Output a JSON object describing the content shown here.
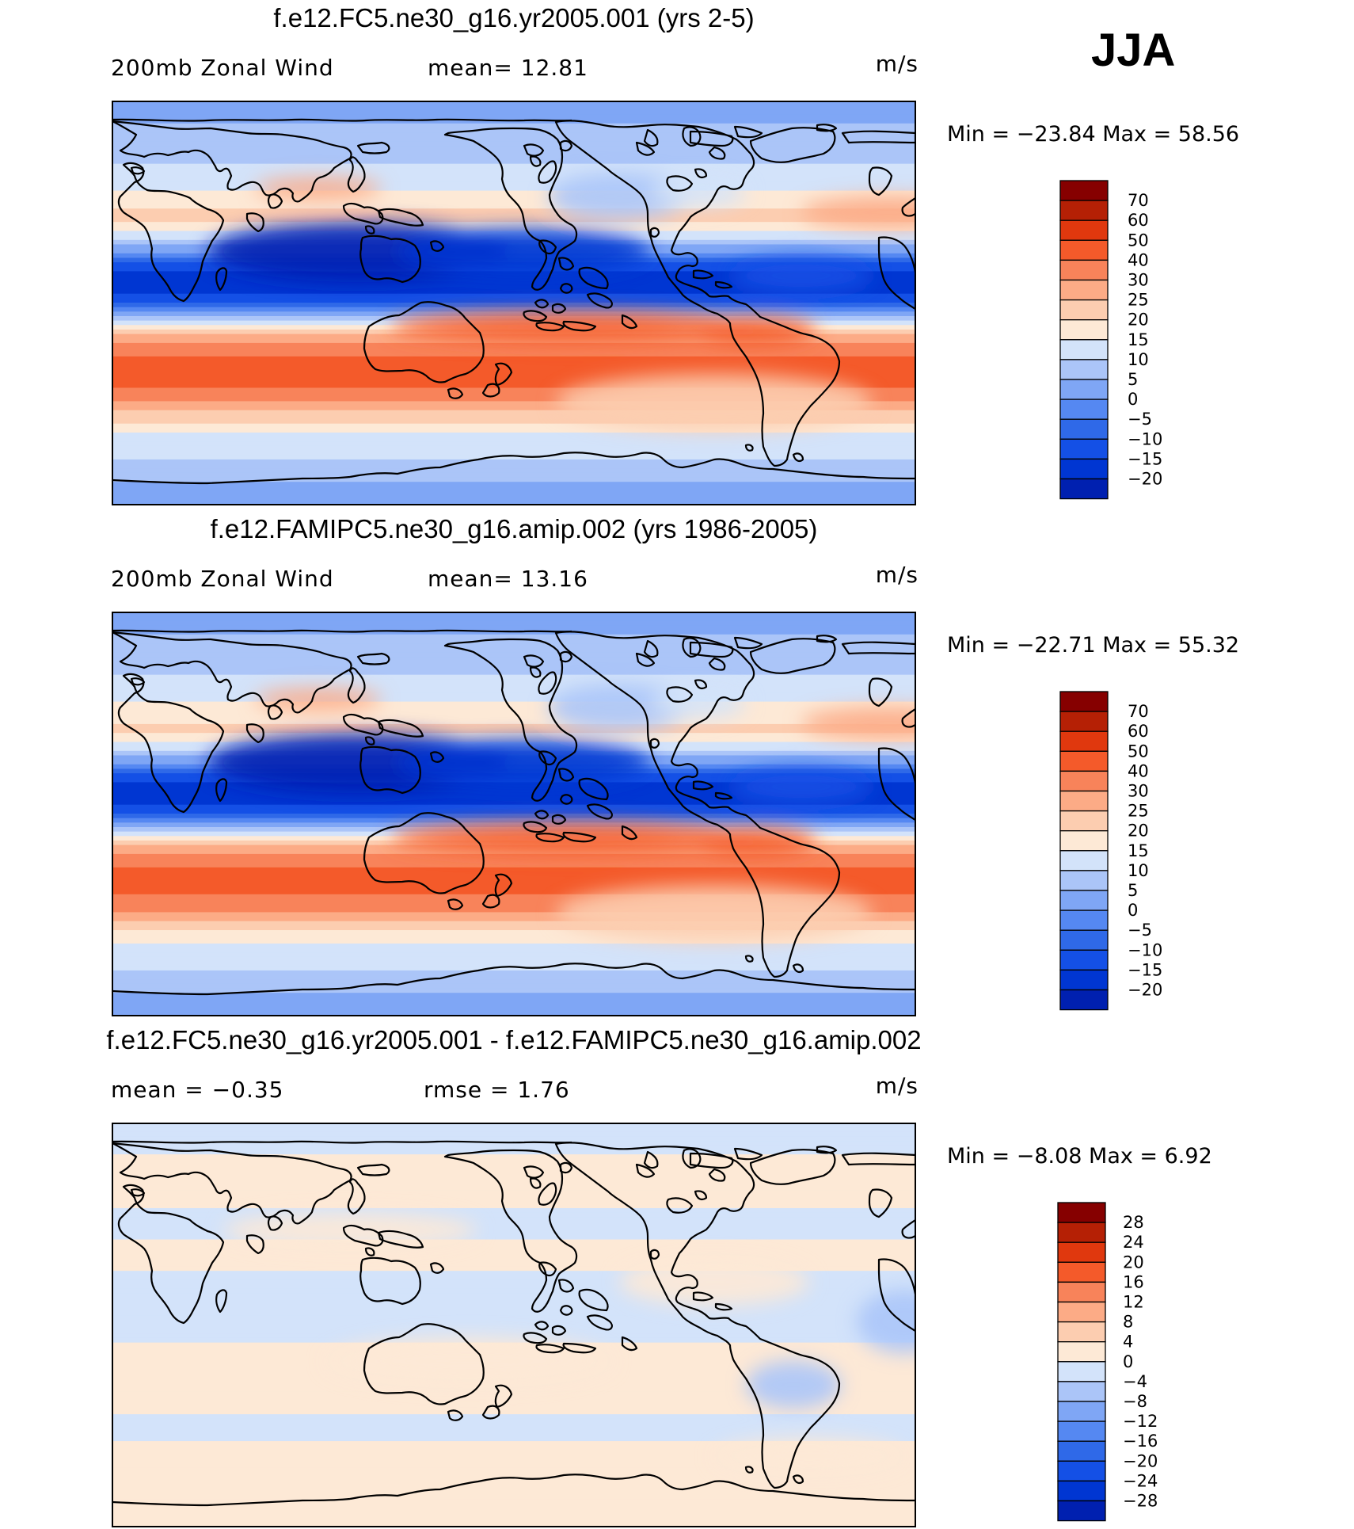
{
  "season": "JJA",
  "palette": {
    "main": [
      "#000E80",
      "#0020B0",
      "#0036D2",
      "#1450E6",
      "#2F69E8",
      "#5588F2",
      "#7FA6F5",
      "#ABC5F8",
      "#D3E3FA",
      "#FDE9D6",
      "#FCCDB0",
      "#FCAB86",
      "#F8835A",
      "#F45A2A",
      "#E0380E",
      "#B52005",
      "#860000"
    ],
    "diff": [
      "#000E80",
      "#0020B0",
      "#0036D2",
      "#1450E6",
      "#2F69E8",
      "#5588F2",
      "#7FA6F5",
      "#ABC5F8",
      "#D3E3FA",
      "#FDE9D6",
      "#FCCDB0",
      "#FCAB86",
      "#F8835A",
      "#F45A2A",
      "#E0380E",
      "#B52005",
      "#860000"
    ]
  },
  "panels": [
    {
      "title": "f.e12.FC5.ne30_g16.yr2005.001 (yrs 2-5)",
      "left_label": "200mb  Zonal  Wind",
      "mid_label": "mean=   12.81",
      "units": "m/s",
      "minmax": "Min  =  −23.84  Max  =    58.56"
    },
    {
      "title": "f.e12.FAMIPC5.ne30_g16.amip.002 (yrs 1986-2005)",
      "left_label": "200mb  Zonal  Wind",
      "mid_label": "mean=   13.16",
      "units": "m/s",
      "minmax": "Min  =  −22.71  Max  =    55.32"
    },
    {
      "title": "f.e12.FC5.ne30_g16.yr2005.001 - f.e12.FAMIPC5.ne30_g16.amip.002",
      "left_label": "mean  =    −0.35",
      "mid_label": "rmse  =     1.76",
      "units": "m/s",
      "minmax": "Min  =    −8.08  Max  =     6.92"
    }
  ],
  "chart_data": [
    {
      "type": "heatmap",
      "title": "f.e12.FC5.ne30_g16.yr2005.001 (yrs 2-5)",
      "variable": "200mb Zonal Wind",
      "units": "m/s",
      "mean": 12.81,
      "min": -23.84,
      "max": 58.56,
      "colorbar_levels": [
        "70",
        "60",
        "50",
        "40",
        "30",
        "25",
        "20",
        "15",
        "10",
        "5",
        "0",
        "−5",
        "−10",
        "−15",
        "−20"
      ],
      "zonal_profile": {
        "lat": [
          90,
          80,
          70,
          62,
          55,
          45,
          38,
          30,
          22,
          15,
          8,
          0,
          -8,
          -15,
          -22,
          -30,
          -38,
          -45,
          -55,
          -62,
          -70,
          -80,
          -90
        ],
        "u": [
          4,
          5,
          7,
          10,
          12,
          18,
          22,
          12,
          0,
          -15,
          -20,
          -10,
          12,
          26,
          38,
          46,
          40,
          28,
          18,
          12,
          10,
          5,
          2
        ]
      }
    },
    {
      "type": "heatmap",
      "title": "f.e12.FAMIPC5.ne30_g16.amip.002 (yrs 1986-2005)",
      "variable": "200mb Zonal Wind",
      "units": "m/s",
      "mean": 13.16,
      "min": -22.71,
      "max": 55.32,
      "colorbar_levels": [
        "70",
        "60",
        "50",
        "40",
        "30",
        "25",
        "20",
        "15",
        "10",
        "5",
        "0",
        "−5",
        "−10",
        "−15",
        "−20"
      ],
      "zonal_profile": {
        "lat": [
          90,
          80,
          70,
          62,
          55,
          45,
          38,
          30,
          22,
          15,
          8,
          0,
          -8,
          -15,
          -22,
          -30,
          -38,
          -45,
          -55,
          -62,
          -70,
          -80,
          -90
        ],
        "u": [
          4,
          5,
          7,
          10,
          12,
          17,
          22,
          12,
          0,
          -15,
          -20,
          -10,
          12,
          26,
          38,
          45,
          38,
          27,
          18,
          12,
          10,
          5,
          2
        ]
      }
    },
    {
      "type": "heatmap",
      "title": "f.e12.FC5.ne30_g16.yr2005.001 - f.e12.FAMIPC5.ne30_g16.amip.002",
      "units": "m/s",
      "mean": -0.35,
      "rmse": 1.76,
      "min": -8.08,
      "max": 6.92,
      "colorbar_levels": [
        "28",
        "24",
        "20",
        "16",
        "12",
        "8",
        "4",
        "0",
        "−4",
        "−8",
        "−12",
        "−16",
        "−20",
        "−24",
        "−28"
      ],
      "zonal_profile": {
        "lat": [
          90,
          60,
          45,
          30,
          15,
          0,
          -15,
          -30,
          -45,
          -60,
          -75,
          -90
        ],
        "u": [
          -1,
          1,
          -1,
          1,
          -2,
          -1,
          1,
          2,
          -1,
          1,
          1,
          0
        ]
      }
    }
  ]
}
